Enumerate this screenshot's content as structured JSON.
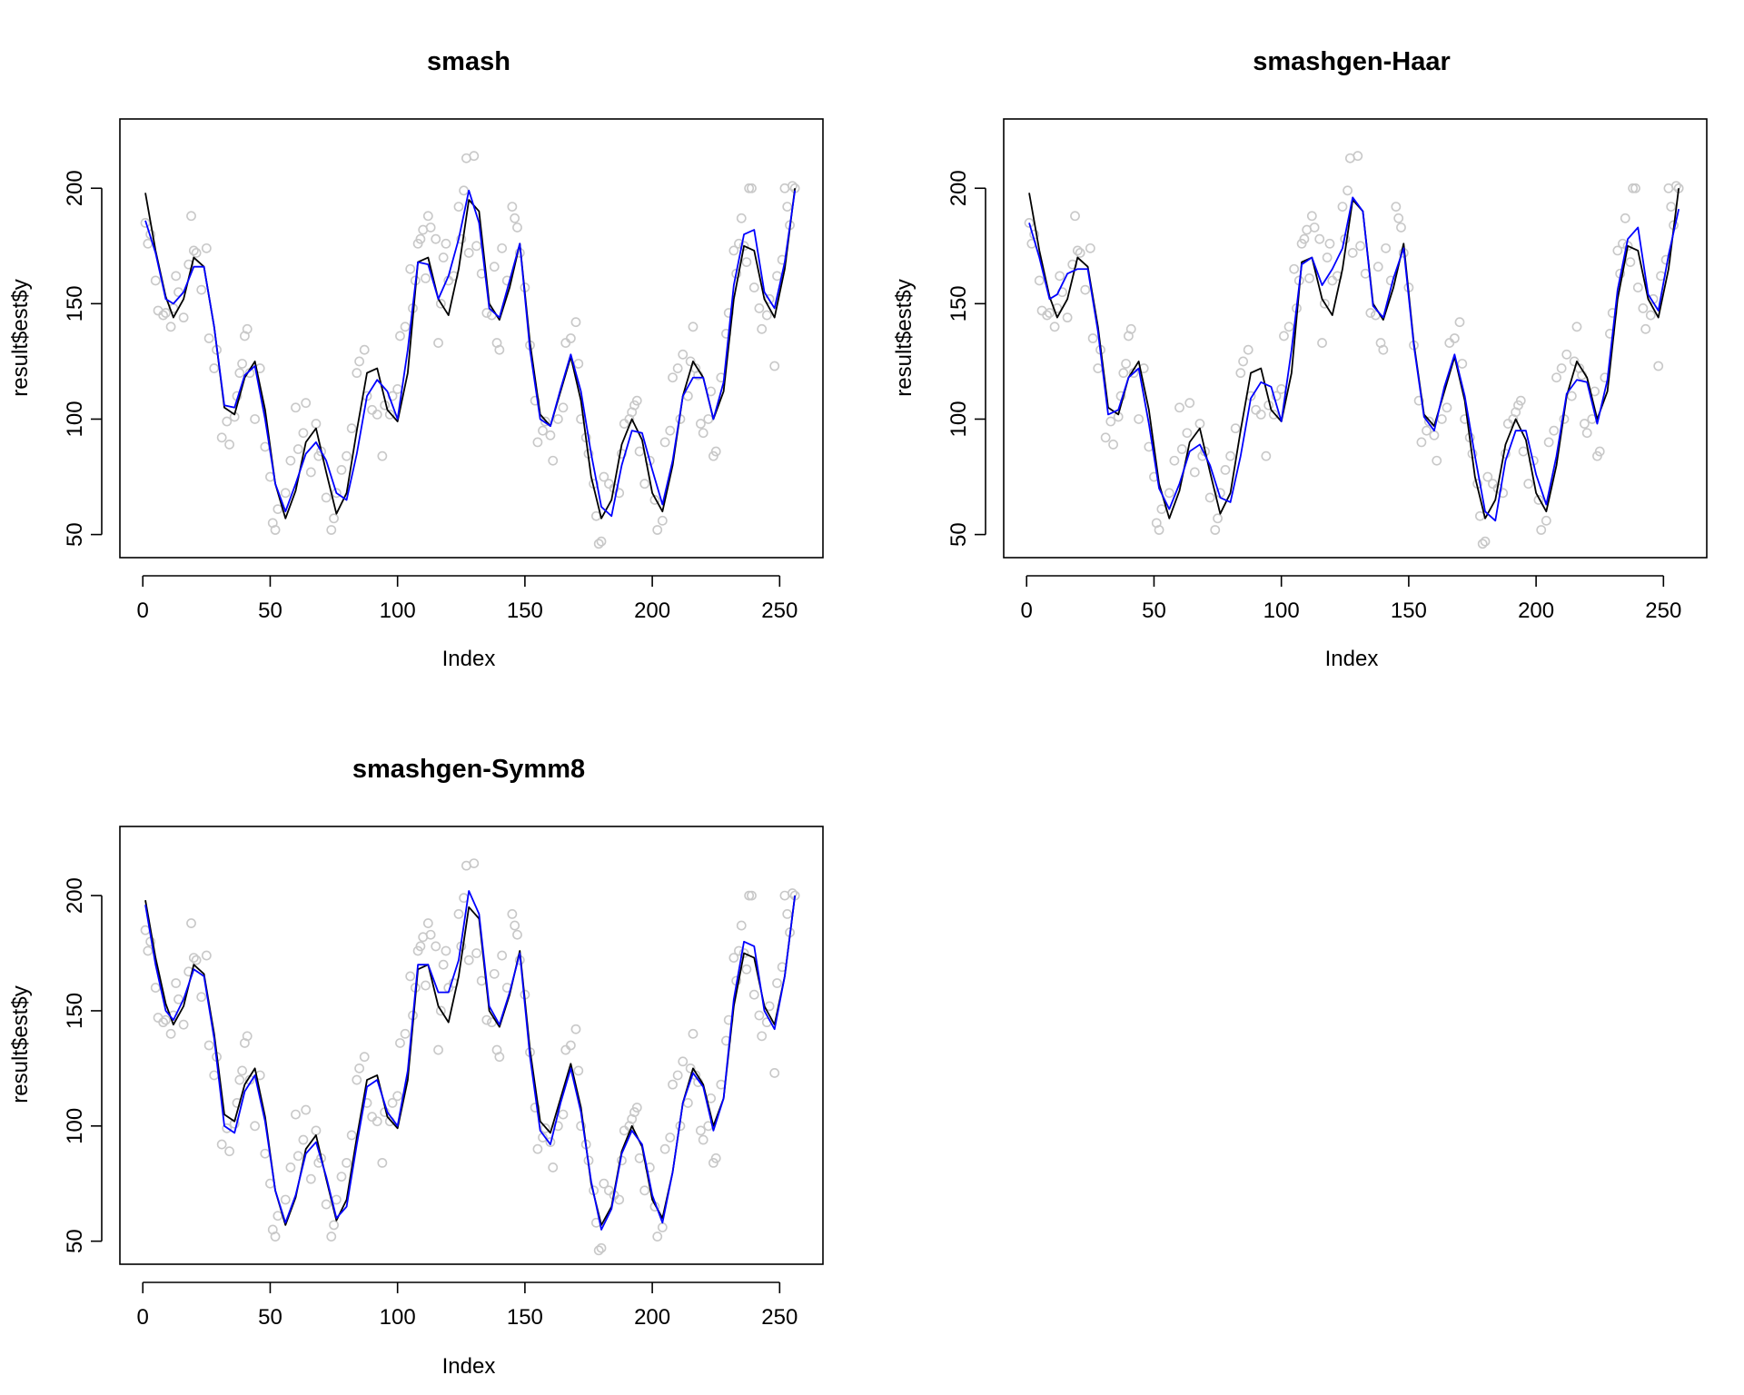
{
  "colors": {
    "points": "#c8c8c8",
    "estimate": "#0000ff",
    "truth": "#000000",
    "frame": "#000000"
  },
  "chart_data": [
    {
      "type": "scatter",
      "title": "smash",
      "xlabel": "Index",
      "ylabel": "result$est$y",
      "xlim": [
        -9,
        267
      ],
      "ylim": [
        40,
        230
      ],
      "xticks": [
        0,
        50,
        100,
        150,
        200,
        250
      ],
      "yticks": [
        50,
        100,
        150,
        200
      ],
      "grid": false,
      "legend": "none",
      "series": [
        {
          "kind": "points",
          "x": [
            1,
            2,
            3,
            5,
            6,
            8,
            9,
            11,
            12,
            13,
            14,
            16,
            18,
            19,
            20,
            21,
            23,
            25,
            26,
            28,
            29,
            31,
            33,
            34,
            36,
            37,
            38,
            39,
            40,
            41,
            42,
            44,
            46,
            48,
            50,
            51,
            52,
            53,
            56,
            58,
            60,
            61,
            63,
            64,
            66,
            68,
            69,
            70,
            72,
            74,
            75,
            76,
            78,
            80,
            82,
            84,
            85,
            87,
            88,
            90,
            92,
            94,
            95,
            97,
            98,
            100,
            101,
            103,
            105,
            106,
            107,
            108,
            109,
            110,
            111,
            112,
            113,
            115,
            116,
            117,
            118,
            119,
            120,
            122,
            124,
            125,
            126,
            127,
            128,
            130,
            131,
            133,
            135,
            137,
            138,
            139,
            140,
            141,
            143,
            145,
            146,
            147,
            148,
            150,
            152,
            154,
            155,
            157,
            158,
            160,
            161,
            163,
            165,
            166,
            168,
            170,
            171,
            172,
            174,
            175,
            177,
            178,
            179,
            180,
            181,
            183,
            185,
            187,
            188,
            189,
            191,
            192,
            193,
            194,
            195,
            197,
            199,
            201,
            202,
            204,
            205,
            207,
            208,
            210,
            211,
            212,
            214,
            215,
            216,
            217,
            218,
            219,
            220,
            222,
            223,
            224,
            225,
            227,
            229,
            230,
            232,
            233,
            234,
            235,
            236,
            237,
            238,
            239,
            240,
            242,
            243,
            245,
            246,
            248,
            249,
            251,
            252,
            253,
            254,
            255,
            256
          ],
          "y": [
            185,
            176,
            180,
            160,
            147,
            145,
            146,
            140,
            148,
            162,
            155,
            144,
            167,
            188,
            173,
            172,
            156,
            174,
            135,
            122,
            130,
            92,
            99,
            89,
            101,
            110,
            120,
            124,
            136,
            139,
            120,
            100,
            122,
            88,
            75,
            55,
            52,
            61,
            68,
            82,
            105,
            87,
            94,
            107,
            77,
            98,
            84,
            86,
            66,
            52,
            57,
            68,
            78,
            84,
            96,
            120,
            125,
            130,
            110,
            104,
            102,
            84,
            106,
            102,
            110,
            113,
            136,
            140,
            165,
            148,
            160,
            176,
            178,
            182,
            161,
            188,
            183,
            178,
            133,
            150,
            170,
            176,
            160,
            162,
            192,
            178,
            199,
            213,
            172,
            214,
            175,
            163,
            146,
            145,
            166,
            133,
            130,
            174,
            160,
            192,
            187,
            183,
            172,
            157,
            132,
            108,
            90,
            95,
            99,
            93,
            82,
            100,
            105,
            133,
            135,
            142,
            124,
            100,
            92,
            85,
            72,
            58,
            46,
            47,
            75,
            72,
            70,
            68,
            85,
            98,
            100,
            103,
            106,
            108,
            86,
            72,
            82,
            65,
            52,
            56,
            90,
            95,
            118,
            122,
            100,
            128,
            110,
            125,
            140,
            122,
            119,
            98,
            94,
            100,
            112,
            84,
            86,
            118,
            137,
            146,
            173,
            163,
            176,
            187,
            175,
            168,
            200,
            200,
            157,
            148,
            139,
            145,
            152,
            123,
            162,
            169,
            200,
            192,
            184,
            201,
            200
          ]
        },
        {
          "kind": "estimate",
          "name": "",
          "x": [
            1,
            5,
            9,
            12,
            16,
            20,
            24,
            28,
            32,
            36,
            40,
            44,
            48,
            52,
            56,
            60,
            64,
            68,
            72,
            76,
            80,
            84,
            88,
            92,
            96,
            100,
            104,
            108,
            112,
            116,
            120,
            124,
            128,
            132,
            136,
            140,
            144,
            148,
            152,
            156,
            160,
            164,
            168,
            172,
            176,
            180,
            184,
            188,
            192,
            196,
            200,
            204,
            208,
            212,
            216,
            220,
            224,
            228,
            232,
            236,
            240,
            244,
            248,
            252,
            256
          ],
          "y": [
            186,
            172,
            152,
            150,
            155,
            166,
            166,
            140,
            106,
            105,
            119,
            123,
            100,
            72,
            60,
            72,
            85,
            90,
            82,
            68,
            65,
            85,
            110,
            117,
            112,
            100,
            130,
            168,
            167,
            152,
            162,
            178,
            199,
            185,
            148,
            144,
            160,
            176,
            130,
            100,
            97,
            113,
            128,
            112,
            85,
            62,
            58,
            80,
            95,
            94,
            78,
            63,
            82,
            110,
            118,
            118,
            100,
            116,
            158,
            180,
            182,
            155,
            148,
            168,
            199
          ]
        },
        {
          "kind": "truth",
          "x": [
            1,
            5,
            9,
            12,
            16,
            20,
            24,
            28,
            32,
            36,
            40,
            44,
            48,
            52,
            56,
            60,
            64,
            68,
            72,
            76,
            80,
            84,
            88,
            92,
            96,
            100,
            104,
            108,
            112,
            116,
            120,
            124,
            128,
            132,
            136,
            140,
            144,
            148,
            152,
            156,
            160,
            164,
            168,
            172,
            176,
            180,
            184,
            188,
            192,
            196,
            200,
            204,
            208,
            212,
            216,
            220,
            224,
            228,
            232,
            236,
            240,
            244,
            248,
            252,
            256
          ],
          "y": [
            198,
            173,
            153,
            144,
            152,
            170,
            166,
            140,
            105,
            102,
            118,
            125,
            104,
            72,
            57,
            69,
            90,
            96,
            77,
            59,
            68,
            95,
            120,
            122,
            104,
            99,
            120,
            168,
            170,
            152,
            145,
            165,
            195,
            190,
            150,
            143,
            157,
            176,
            133,
            102,
            97,
            112,
            127,
            108,
            75,
            57,
            65,
            89,
            100,
            91,
            68,
            60,
            80,
            110,
            125,
            118,
            100,
            112,
            152,
            175,
            173,
            152,
            144,
            165,
            200
          ]
        }
      ]
    },
    {
      "type": "scatter",
      "title": "smashgen-Haar",
      "xlabel": "Index",
      "ylabel": "result$est$y",
      "xlim": [
        -9,
        267
      ],
      "ylim": [
        40,
        230
      ],
      "xticks": [
        0,
        50,
        100,
        150,
        200,
        250
      ],
      "yticks": [
        50,
        100,
        150,
        200
      ],
      "grid": false,
      "legend": "none",
      "series": [
        {
          "kind": "points",
          "same_as_panel": 0
        },
        {
          "kind": "estimate",
          "name": "",
          "x": [
            1,
            5,
            9,
            12,
            16,
            20,
            24,
            28,
            32,
            36,
            40,
            44,
            48,
            52,
            56,
            60,
            64,
            68,
            72,
            76,
            80,
            84,
            88,
            92,
            96,
            100,
            104,
            108,
            112,
            116,
            120,
            124,
            128,
            132,
            136,
            140,
            144,
            148,
            152,
            156,
            160,
            164,
            168,
            172,
            176,
            180,
            184,
            188,
            192,
            196,
            200,
            204,
            208,
            212,
            216,
            220,
            224,
            228,
            232,
            236,
            240,
            244,
            248,
            252,
            256
          ],
          "y": [
            185,
            170,
            152,
            154,
            163,
            165,
            165,
            138,
            102,
            104,
            118,
            122,
            98,
            70,
            61,
            72,
            86,
            89,
            80,
            66,
            64,
            84,
            109,
            116,
            114,
            99,
            130,
            167,
            170,
            158,
            165,
            174,
            196,
            190,
            149,
            144,
            161,
            174,
            132,
            101,
            95,
            114,
            128,
            110,
            84,
            60,
            56,
            82,
            95,
            95,
            76,
            63,
            84,
            111,
            117,
            116,
            98,
            117,
            156,
            178,
            183,
            154,
            147,
            171,
            191
          ]
        },
        {
          "kind": "truth",
          "same_as_panel": 0
        }
      ]
    },
    {
      "type": "scatter",
      "title": "smashgen-Symm8",
      "xlabel": "Index",
      "ylabel": "result$est$y",
      "xlim": [
        -9,
        267
      ],
      "ylim": [
        40,
        230
      ],
      "xticks": [
        0,
        50,
        100,
        150,
        200,
        250
      ],
      "yticks": [
        50,
        100,
        150,
        200
      ],
      "grid": false,
      "legend": "none",
      "series": [
        {
          "kind": "points",
          "same_as_panel": 0
        },
        {
          "kind": "estimate",
          "name": "",
          "x": [
            1,
            5,
            9,
            12,
            16,
            20,
            24,
            28,
            32,
            36,
            40,
            44,
            48,
            52,
            56,
            60,
            64,
            68,
            72,
            76,
            80,
            84,
            88,
            92,
            96,
            100,
            104,
            108,
            112,
            116,
            120,
            124,
            128,
            132,
            136,
            140,
            144,
            148,
            152,
            156,
            160,
            164,
            168,
            172,
            176,
            180,
            184,
            188,
            192,
            196,
            200,
            204,
            208,
            212,
            216,
            220,
            224,
            228,
            232,
            236,
            240,
            244,
            248,
            252,
            256
          ],
          "y": [
            196,
            170,
            150,
            146,
            155,
            168,
            165,
            138,
            100,
            97,
            115,
            122,
            102,
            72,
            58,
            70,
            88,
            93,
            78,
            60,
            65,
            92,
            117,
            120,
            106,
            100,
            124,
            170,
            170,
            158,
            158,
            172,
            202,
            192,
            152,
            144,
            158,
            175,
            130,
            98,
            92,
            110,
            125,
            106,
            76,
            55,
            64,
            88,
            98,
            92,
            70,
            58,
            80,
            110,
            123,
            117,
            98,
            112,
            155,
            180,
            178,
            150,
            142,
            165,
            200
          ]
        },
        {
          "kind": "truth",
          "same_as_panel": 0
        }
      ]
    }
  ]
}
